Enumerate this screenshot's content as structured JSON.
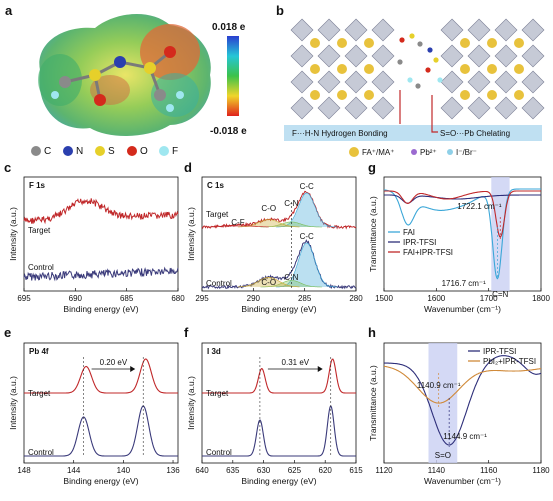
{
  "panel_a": {
    "letter": "a",
    "colorbar": {
      "max": "0.018 e",
      "min": "-0.018 e"
    },
    "legend": [
      {
        "name": "C",
        "color": "#8a8a8a"
      },
      {
        "name": "N",
        "color": "#2b3fae"
      },
      {
        "name": "S",
        "color": "#e6d02a"
      },
      {
        "name": "O",
        "color": "#d42a1c"
      },
      {
        "name": "F",
        "color": "#9fe7f0"
      }
    ]
  },
  "panel_b": {
    "letter": "b",
    "label_hbond": "F···H-N Hydrogen Bonding",
    "label_chelate": "S=O···Pb Chelating",
    "legend": [
      {
        "name": "FA⁺/MA⁺",
        "color": "#e8c23c"
      },
      {
        "name": "Pb²⁺",
        "color": "#9b6ad0"
      },
      {
        "name": "I⁻/Br⁻",
        "color": "#8fd0e8"
      }
    ]
  },
  "chart_data": [
    {
      "panel": "c",
      "type": "line",
      "title": "F 1s",
      "xlabel": "Binding energy (eV)",
      "ylabel": "Intensity (a.u.)",
      "xlim": [
        695,
        680
      ],
      "xticks": [
        "695",
        "690",
        "685",
        "680"
      ],
      "series": [
        {
          "name": "Target",
          "color": "#c0282a",
          "shape": "F1s-peak",
          "peak_x": 689.0
        },
        {
          "name": "Control",
          "color": "#3a3a7a",
          "shape": "flat"
        }
      ]
    },
    {
      "panel": "d",
      "type": "line",
      "title": "C 1s",
      "xlabel": "Binding energy (eV)",
      "ylabel": "Intensity (a.u.)",
      "xlim": [
        295,
        280
      ],
      "xticks": [
        "295",
        "290",
        "285",
        "280"
      ],
      "annotations": [
        "C-C",
        "C-N",
        "C-O",
        "C-F",
        "C-C",
        "C-N",
        "C-O"
      ],
      "series": [
        {
          "name": "Target",
          "color": "#c0282a",
          "peaks": [
            284.8,
            286.3,
            288.5,
            291.5
          ]
        },
        {
          "name": "Control",
          "color": "#3a3a7a",
          "peaks": [
            284.8,
            286.3,
            288.5
          ]
        }
      ]
    },
    {
      "panel": "e",
      "type": "line",
      "title": "Pb 4f",
      "xlabel": "Binding energy (eV)",
      "ylabel": "Intensity (a.u.)",
      "xlim": [
        148,
        135.6
      ],
      "xticks": [
        "148",
        "144",
        "140",
        "136"
      ],
      "annotation": "0.20 eV",
      "series": [
        {
          "name": "Target",
          "color": "#c0282a",
          "peaks": [
            143.0,
            138.2
          ]
        },
        {
          "name": "Control",
          "color": "#3a3a7a",
          "peaks": [
            143.2,
            138.4
          ]
        }
      ]
    },
    {
      "panel": "f",
      "type": "line",
      "title": "I 3d",
      "xlabel": "Binding energy (eV)",
      "ylabel": "Intensity (a.u.)",
      "xlim": [
        640,
        615
      ],
      "xticks": [
        "640",
        "635",
        "630",
        "625",
        "620",
        "615"
      ],
      "annotation": "0.31 eV",
      "series": [
        {
          "name": "Target",
          "color": "#c0282a",
          "peaks": [
            630.3,
            618.8
          ]
        },
        {
          "name": "Control",
          "color": "#3a3a7a",
          "peaks": [
            630.6,
            619.1
          ]
        }
      ]
    },
    {
      "panel": "g",
      "type": "line",
      "xlabel": "Wavenumber (cm⁻¹)",
      "ylabel": "Transmittance (a.u.)",
      "xlim": [
        1500,
        1800
      ],
      "xticks": [
        "1500",
        "1600",
        "1700",
        "1800"
      ],
      "annotations": [
        "1722.1 cm⁻¹",
        "1716.7 cm⁻¹",
        "C=N"
      ],
      "highlight": [
        1705,
        1740
      ],
      "series": [
        {
          "name": "FAI",
          "color": "#3ba7d8",
          "min_x": 1716.7
        },
        {
          "name": "IPR-TFSI",
          "color": "#2e2f7a"
        },
        {
          "name": "FAI+IPR-TFSI",
          "color": "#c0282a",
          "min_x": 1722.1
        }
      ]
    },
    {
      "panel": "h",
      "type": "line",
      "xlabel": "Wavenumber (cm⁻¹)",
      "ylabel": "Transmittance (a.u.)",
      "xlim": [
        1120,
        1180
      ],
      "xticks": [
        "1120",
        "1140",
        "1160",
        "1180"
      ],
      "annotations": [
        "1140.9 cm⁻¹",
        "1144.9 cm⁻¹",
        "S=O"
      ],
      "highlight": [
        1137,
        1148
      ],
      "series": [
        {
          "name": "IPR-TFSI",
          "color": "#2e2f7a",
          "min_x": 1144.9
        },
        {
          "name": "PbI₂+IPR-TFSI",
          "color": "#d08a3a",
          "min_x": 1140.9
        }
      ]
    }
  ]
}
